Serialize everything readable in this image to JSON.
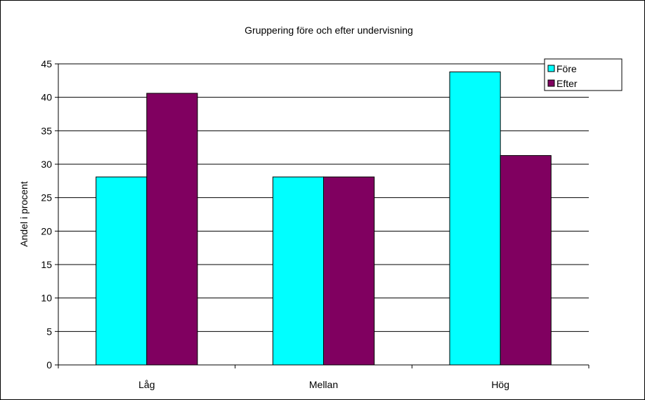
{
  "chart_data": {
    "type": "bar",
    "title": "Gruppering före och efter undervisning",
    "xlabel": "",
    "ylabel": "Andel i procent",
    "categories": [
      "Låg",
      "Mellan",
      "Hög"
    ],
    "series": [
      {
        "name": "Före",
        "values": [
          28.1,
          28.1,
          43.8
        ],
        "color": "#00FFFF"
      },
      {
        "name": "Efter",
        "values": [
          40.6,
          28.1,
          31.3
        ],
        "color": "#800060"
      }
    ],
    "ylim": [
      0,
      45
    ],
    "yticks": [
      0,
      5,
      10,
      15,
      20,
      25,
      30,
      35,
      40,
      45
    ],
    "grid": true,
    "legend": "top-right"
  }
}
